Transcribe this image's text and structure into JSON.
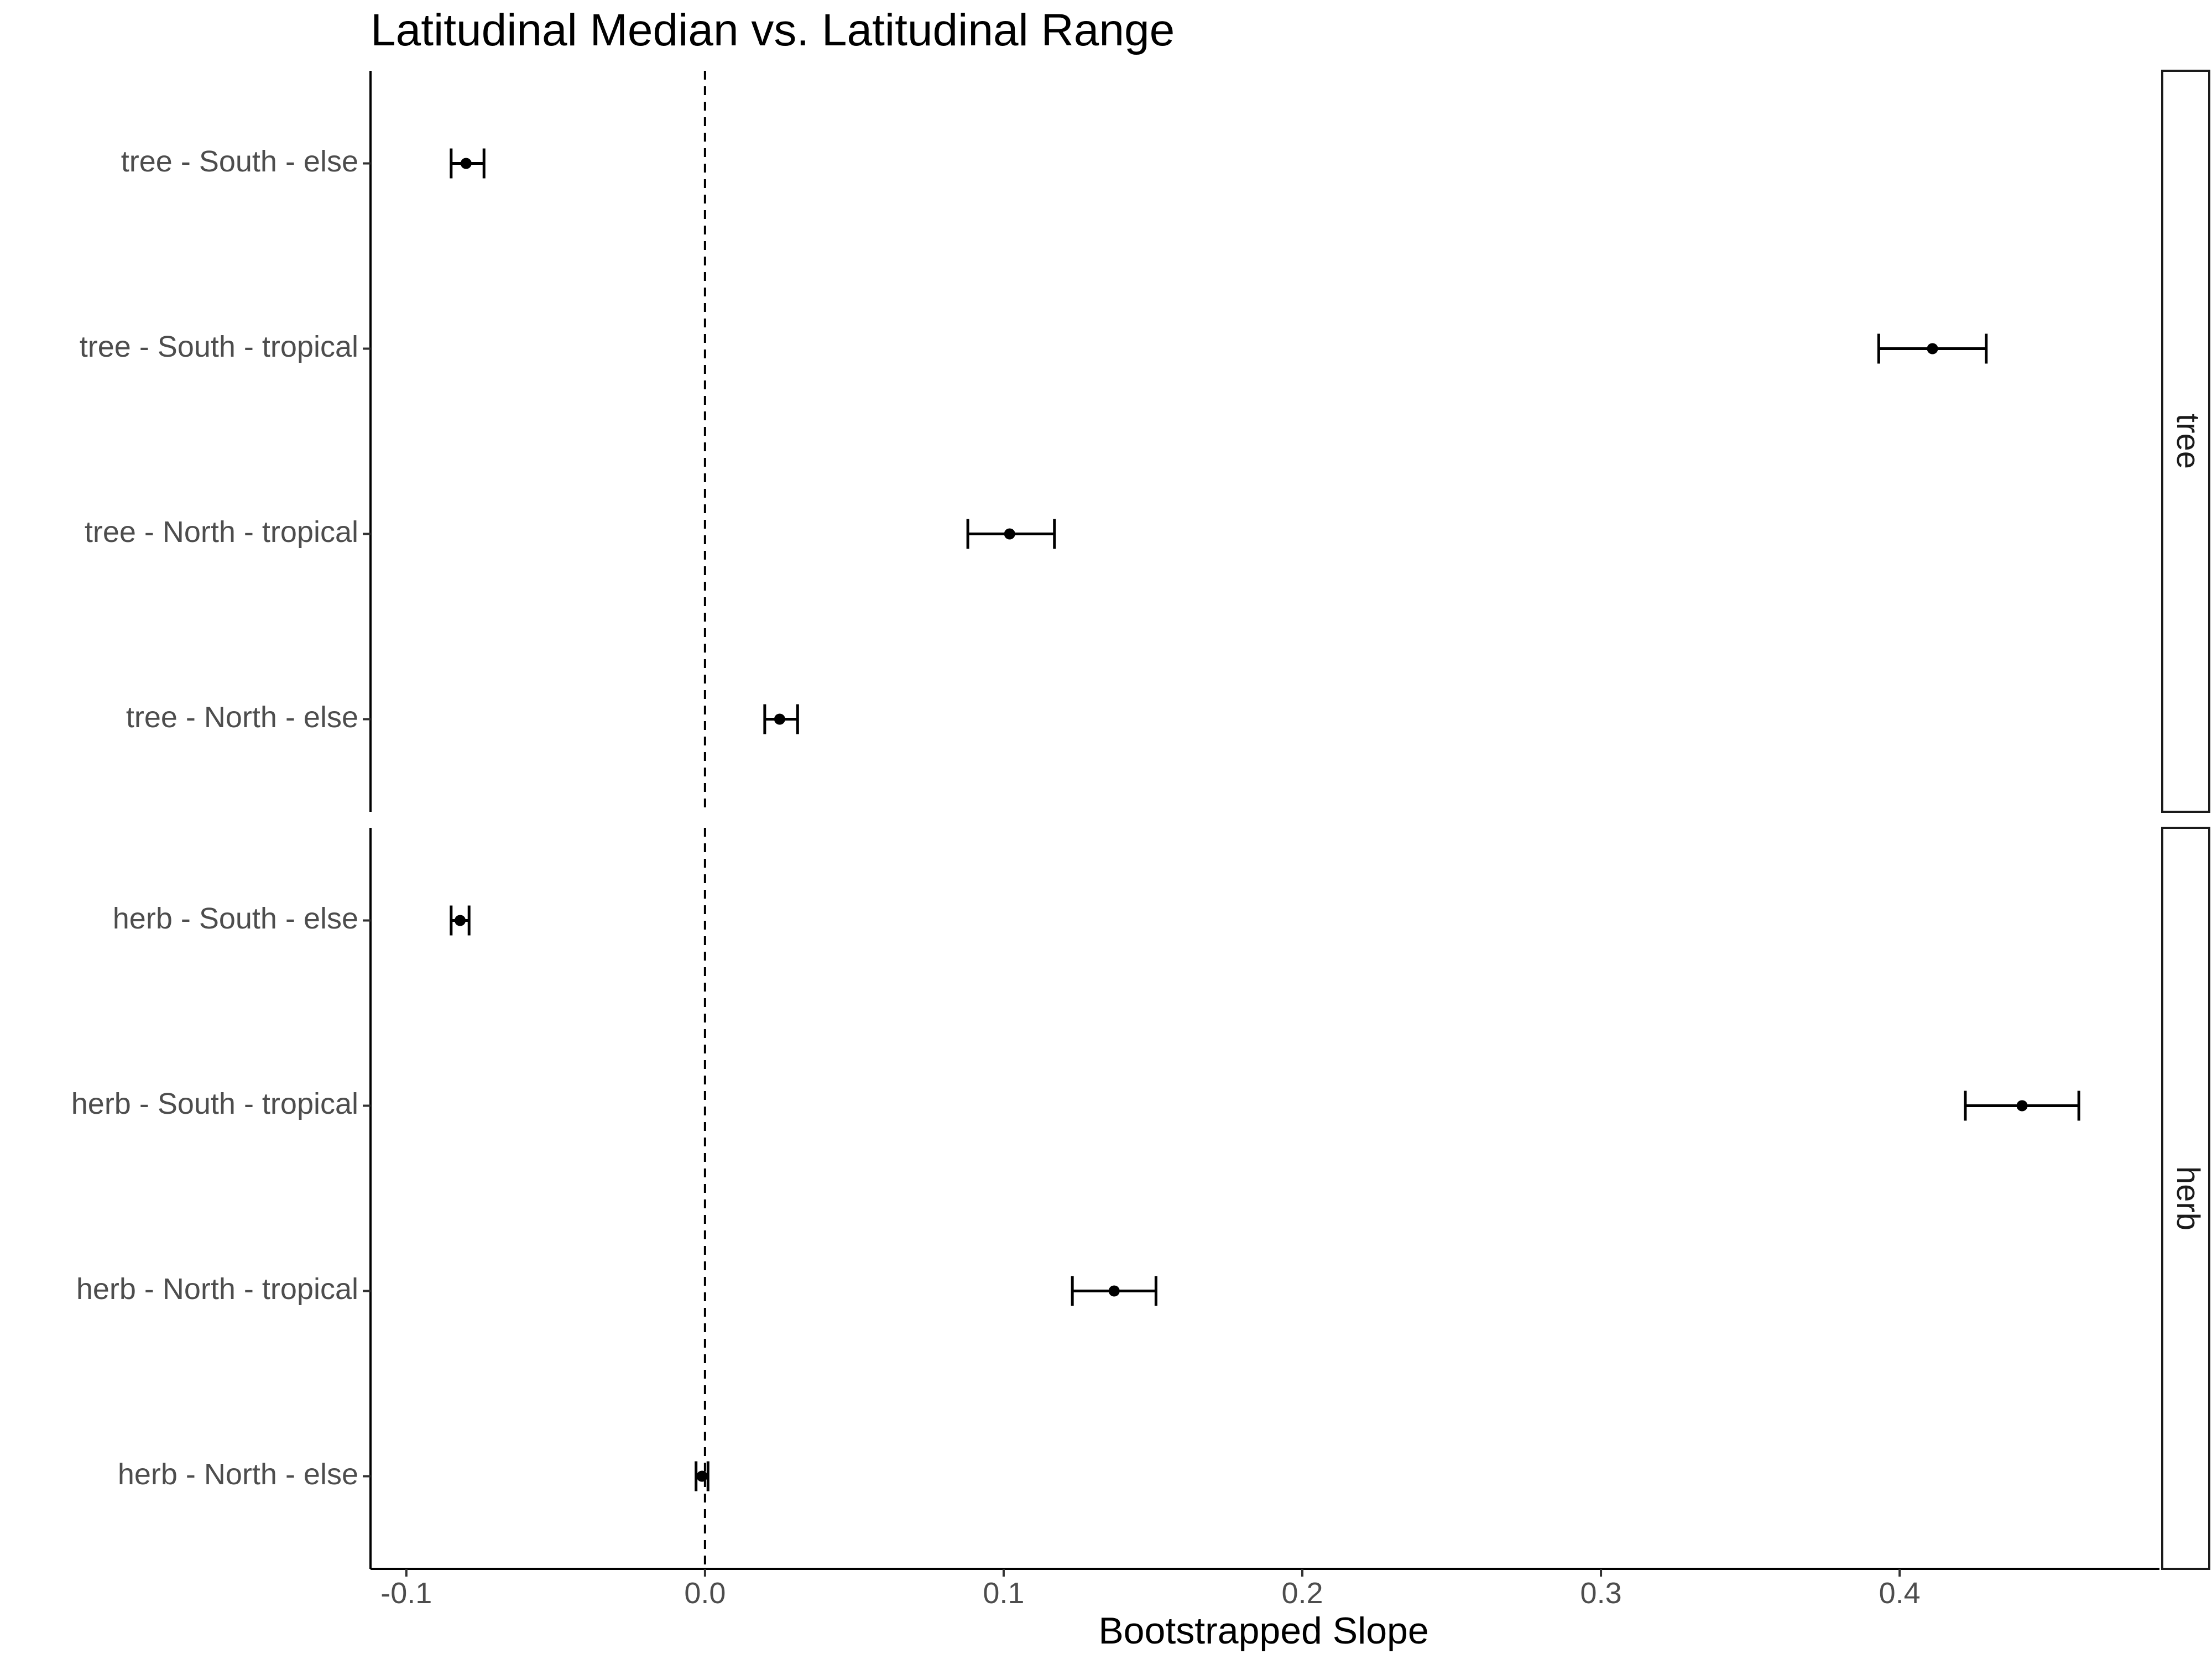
{
  "chart_data": {
    "type": "dot-errorbar",
    "title": "Latitudinal Median vs. Latitudinal Range",
    "xlabel": "Bootstrapped Slope",
    "ylabel": "",
    "xlim": [
      -0.112,
      0.487
    ],
    "xticks": [
      -0.1,
      0.0,
      0.1,
      0.2,
      0.3,
      0.4
    ],
    "xtick_labels": [
      "-0.1",
      "0.0",
      "0.1",
      "0.2",
      "0.3",
      "0.4"
    ],
    "reference_line": {
      "x": 0,
      "style": "dashed"
    },
    "grid": false,
    "facets": [
      {
        "strip_label": "tree",
        "categories": [
          "tree - South - else",
          "tree - South - tropical",
          "tree - North - tropical",
          "tree - North - else"
        ],
        "estimate": [
          -0.08,
          0.411,
          0.102,
          0.025
        ],
        "lower": [
          -0.085,
          0.393,
          0.088,
          0.02
        ],
        "upper": [
          -0.074,
          0.429,
          0.117,
          0.031
        ]
      },
      {
        "strip_label": "herb",
        "categories": [
          "herb - South - else",
          "herb - South - tropical",
          "herb - North - tropical",
          "herb - North - else"
        ],
        "estimate": [
          -0.082,
          0.441,
          0.137,
          -0.001
        ],
        "lower": [
          -0.085,
          0.422,
          0.123,
          -0.003
        ],
        "upper": [
          -0.079,
          0.46,
          0.151,
          0.001
        ]
      }
    ]
  }
}
